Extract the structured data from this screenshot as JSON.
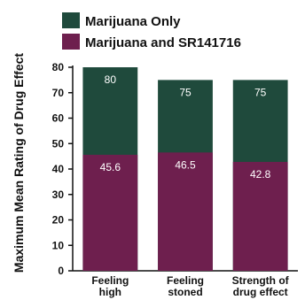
{
  "chart_data": {
    "type": "bar",
    "title": "",
    "xlabel": "",
    "ylabel": "Maximum Mean Rating of Drug Effect",
    "ylim": [
      0,
      80
    ],
    "yticks": [
      0,
      10,
      20,
      30,
      40,
      50,
      60,
      70,
      80
    ],
    "categories": [
      [
        "Feeling",
        "high"
      ],
      [
        "Feeling",
        "stoned"
      ],
      [
        "Strength of",
        "drug effect"
      ]
    ],
    "series": [
      {
        "name": "Marijuana Only",
        "color": "#1f4a3c",
        "values": [
          80,
          75,
          75
        ],
        "labels": [
          "80",
          "75",
          "75"
        ]
      },
      {
        "name": "Marijuana and SR141716",
        "color": "#6e1f4e",
        "values": [
          45.6,
          46.5,
          42.8
        ],
        "labels": [
          "45.6",
          "46.5",
          "42.8"
        ]
      }
    ],
    "grid": false,
    "legend_position": "top"
  }
}
